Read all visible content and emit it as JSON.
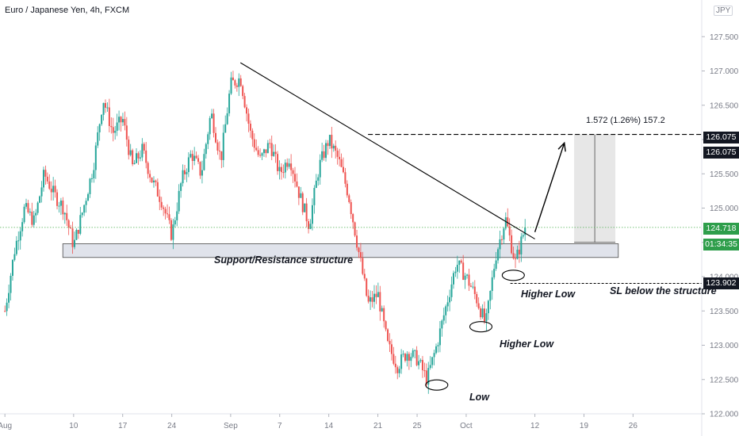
{
  "header": {
    "title": "Euro / Japanese Yen, 4h, FXCM",
    "currency": "JPY"
  },
  "annotations": {
    "structure": "Support/Resistance structure",
    "higher_low_1": "Higher Low",
    "higher_low_2": "Higher Low",
    "low": "Low",
    "sl": "SL below the structure",
    "measure": "1.572 (1.26%) 157.2"
  },
  "price_tags": {
    "target_1": "126.075",
    "target_2": "126.075",
    "current": "124.718",
    "countdown": "01:34:35",
    "stop": "123.902"
  },
  "colors": {
    "up": "#26a69a",
    "down": "#ef5350",
    "zone": "#e0e3eb",
    "current_line": "#4caf50",
    "tag_dark": "#131722",
    "tag_green": "#2e9e4b"
  },
  "chart_data": {
    "type": "candlestick",
    "symbol": "EURJPY",
    "timeframe": "4h",
    "ylim": [
      122.0,
      128.0
    ],
    "y_ticks": [
      122.0,
      122.5,
      123.0,
      123.5,
      124.0,
      124.5,
      125.0,
      125.5,
      126.0,
      126.5,
      127.0,
      127.5
    ],
    "x_ticks": [
      {
        "label": "Aug",
        "t": 0
      },
      {
        "label": "10",
        "t": 7
      },
      {
        "label": "17",
        "t": 12
      },
      {
        "label": "24",
        "t": 17
      },
      {
        "label": "Sep",
        "t": 23
      },
      {
        "label": "7",
        "t": 28
      },
      {
        "label": "14",
        "t": 33
      },
      {
        "label": "21",
        "t": 38
      },
      {
        "label": "25",
        "t": 42
      },
      {
        "label": "Oct",
        "t": 47
      },
      {
        "label": "12",
        "t": 54
      },
      {
        "label": "19",
        "t": 59
      },
      {
        "label": "26",
        "t": 64
      }
    ],
    "x_range": [
      -0.5,
      71
    ],
    "last_t": 53,
    "path_points": [
      [
        0,
        123.5
      ],
      [
        1,
        124.4
      ],
      [
        2,
        125.0
      ],
      [
        3,
        124.8
      ],
      [
        4,
        125.5
      ],
      [
        5,
        125.2
      ],
      [
        6,
        125.0
      ],
      [
        7,
        124.45
      ],
      [
        8,
        125.0
      ],
      [
        9,
        125.6
      ],
      [
        10,
        126.6
      ],
      [
        11,
        126.1
      ],
      [
        12,
        126.3
      ],
      [
        13,
        125.6
      ],
      [
        14,
        125.85
      ],
      [
        15,
        125.4
      ],
      [
        16,
        125.1
      ],
      [
        17,
        124.6
      ],
      [
        18,
        125.4
      ],
      [
        19,
        125.8
      ],
      [
        20,
        125.5
      ],
      [
        21,
        126.4
      ],
      [
        22,
        125.7
      ],
      [
        23,
        126.8
      ],
      [
        24,
        126.9
      ],
      [
        25,
        126.1
      ],
      [
        26,
        125.7
      ],
      [
        27,
        125.95
      ],
      [
        28,
        125.5
      ],
      [
        29,
        125.75
      ],
      [
        30,
        125.2
      ],
      [
        31,
        124.75
      ],
      [
        32,
        125.6
      ],
      [
        33,
        126.0
      ],
      [
        34,
        125.7
      ],
      [
        35,
        125.2
      ],
      [
        36,
        124.4
      ],
      [
        37,
        123.6
      ],
      [
        38,
        123.75
      ],
      [
        39,
        123.0
      ],
      [
        40,
        122.7
      ],
      [
        41,
        122.9
      ],
      [
        42,
        122.8
      ],
      [
        43,
        122.5
      ],
      [
        44,
        123.0
      ],
      [
        45,
        123.6
      ],
      [
        46,
        124.2
      ],
      [
        47,
        124.0
      ],
      [
        48,
        123.7
      ],
      [
        49,
        123.3
      ],
      [
        50,
        124.3
      ],
      [
        51,
        124.85
      ],
      [
        52,
        124.2
      ],
      [
        53,
        124.718
      ]
    ],
    "support_zone": {
      "t_start": 5.9,
      "t_end": 62.5,
      "y_low": 124.28,
      "y_high": 124.48
    },
    "trendline": {
      "t1": 24.0,
      "y1": 127.12,
      "t2": 54.0,
      "y2": 124.55
    },
    "projection": {
      "from_t": 54.0,
      "from_y": 124.65,
      "to_t": 57.0,
      "to_y": 125.95
    },
    "target_level": {
      "value": 126.075,
      "t_start": 37.0
    },
    "target_box": {
      "t_start": 58.0,
      "t_end": 62.2,
      "y_low": 124.5,
      "y_high": 126.075
    },
    "current_price": 124.718,
    "stop_level": {
      "value": 123.902,
      "t_start": 51.5
    },
    "markers": [
      {
        "t": 44.0,
        "y": 122.42,
        "name": "low"
      },
      {
        "t": 48.5,
        "y": 123.27,
        "name": "higher-low-1"
      },
      {
        "t": 51.8,
        "y": 124.02,
        "name": "higher-low-2"
      }
    ]
  }
}
